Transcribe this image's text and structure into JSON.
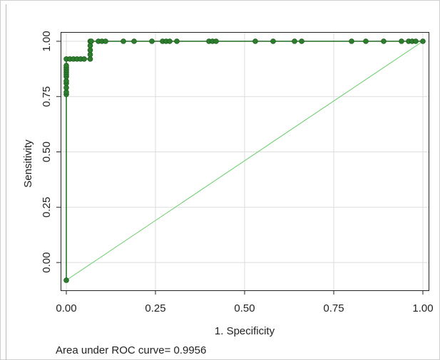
{
  "chart_data": {
    "type": "line",
    "title": "",
    "xlabel": "1. Specificity",
    "ylabel": "Sensitivity",
    "xlim": [
      0,
      1
    ],
    "ylim": [
      -0.1,
      1.02
    ],
    "grid": true,
    "x_ticks": [
      "0.00",
      "0.25",
      "0.50",
      "0.75",
      "1.00"
    ],
    "y_ticks": [
      "0.00",
      "0.25",
      "0.50",
      "0.75",
      "1.00"
    ],
    "caption": "Area under ROC curve= 0.9956",
    "colors": {
      "curve": "#1f6b1f",
      "marker": "#2e7d2e",
      "reference": "#66cc66",
      "grid": "#dddddd"
    },
    "roc_curve": {
      "x": [
        0,
        0,
        0,
        0,
        0,
        0,
        0,
        0,
        0,
        0,
        0,
        0,
        0,
        0.01,
        0.02,
        0.03,
        0.04,
        0.05,
        0.067,
        0.067,
        0.067,
        0.067,
        0.067,
        0.07,
        0.09,
        0.1,
        0.11,
        0.16,
        0.19,
        0.24,
        0.27,
        0.28,
        0.29,
        0.31,
        0.4,
        0.41,
        0.42,
        0.53,
        0.58,
        0.64,
        0.66,
        0.8,
        0.84,
        0.89,
        0.94,
        0.96,
        0.97,
        0.98,
        1.0
      ],
      "y": [
        -0.08,
        0.76,
        0.77,
        0.79,
        0.81,
        0.82,
        0.84,
        0.85,
        0.86,
        0.87,
        0.88,
        0.89,
        0.92,
        0.92,
        0.92,
        0.92,
        0.92,
        0.92,
        0.92,
        0.94,
        0.96,
        0.98,
        1.0,
        1.0,
        1.0,
        1.0,
        1.0,
        1.0,
        1.0,
        1.0,
        1.0,
        1.0,
        1.0,
        1.0,
        1.0,
        1.0,
        1.0,
        1.0,
        1.0,
        1.0,
        1.0,
        1.0,
        1.0,
        1.0,
        1.0,
        1.0,
        1.0,
        1.0,
        1.0
      ]
    },
    "reference_line": {
      "x": [
        0,
        1
      ],
      "y": [
        -0.08,
        1.0
      ]
    }
  }
}
